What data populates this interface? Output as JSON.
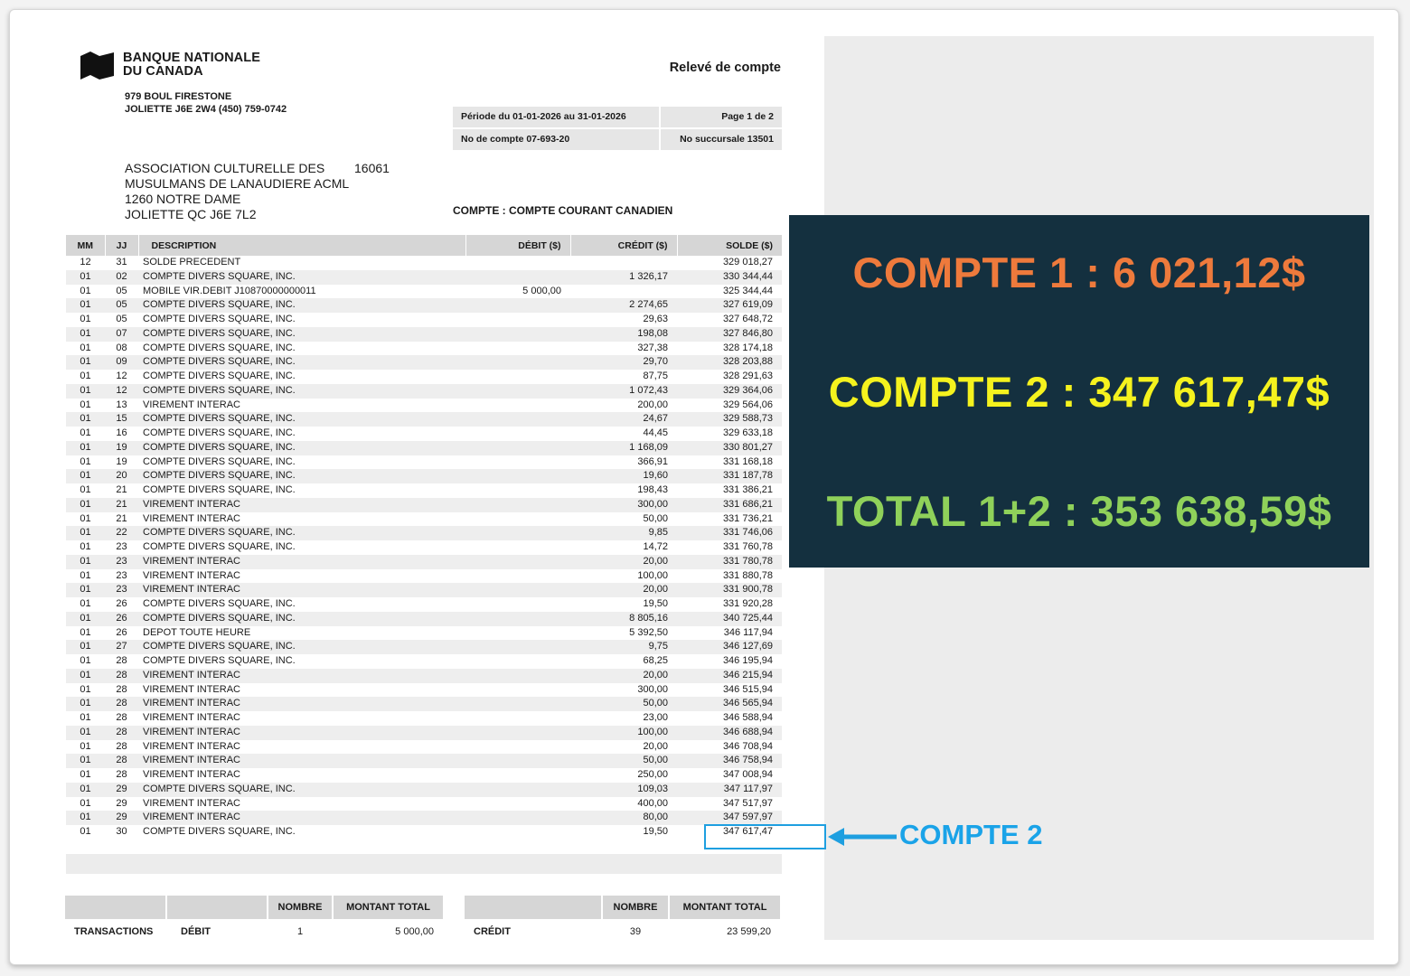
{
  "bank": {
    "name_line1": "BANQUE NATIONALE",
    "name_line2": "DU CANADA",
    "address_line1": "979 BOUL FIRESTONE",
    "address_line2": "JOLIETTE J6E 2W4 (450) 759-0742"
  },
  "document_title": "Relevé de compte",
  "period": {
    "period_text": "Période du 01-01-2026 au 31-01-2026",
    "page_text": "Page 1 de 2",
    "account_no": "No de compte 07-693-20",
    "branch_no": "No succursale 13501"
  },
  "client": {
    "line1": "ASSOCIATION CULTURELLE DES",
    "client_number": "16061",
    "line2": "MUSULMANS DE LANAUDIERE ACML",
    "line3": "1260 NOTRE DAME",
    "line4": "JOLIETTE QC  J6E 7L2"
  },
  "account_type": "COMPTE : COMPTE COURANT CANADIEN",
  "table": {
    "headers": [
      "MM",
      "JJ",
      "DESCRIPTION",
      "DÉBIT ($)",
      "CRÉDIT ($)",
      "SOLDE ($)"
    ],
    "rows": [
      [
        "12",
        "31",
        "SOLDE PRECEDENT",
        "",
        "",
        "329 018,27"
      ],
      [
        "01",
        "02",
        "COMPTE DIVERS SQUARE, INC.",
        "",
        "1 326,17",
        "330 344,44"
      ],
      [
        "01",
        "05",
        "MOBILE VIR.DEBIT J10870000000011",
        "5 000,00",
        "",
        "325 344,44"
      ],
      [
        "01",
        "05",
        "COMPTE DIVERS SQUARE, INC.",
        "",
        "2 274,65",
        "327 619,09"
      ],
      [
        "01",
        "05",
        "COMPTE DIVERS SQUARE, INC.",
        "",
        "29,63",
        "327 648,72"
      ],
      [
        "01",
        "07",
        "COMPTE DIVERS SQUARE, INC.",
        "",
        "198,08",
        "327 846,80"
      ],
      [
        "01",
        "08",
        "COMPTE DIVERS SQUARE, INC.",
        "",
        "327,38",
        "328 174,18"
      ],
      [
        "01",
        "09",
        "COMPTE DIVERS SQUARE, INC.",
        "",
        "29,70",
        "328 203,88"
      ],
      [
        "01",
        "12",
        "COMPTE DIVERS SQUARE, INC.",
        "",
        "87,75",
        "328 291,63"
      ],
      [
        "01",
        "12",
        "COMPTE DIVERS SQUARE, INC.",
        "",
        "1 072,43",
        "329 364,06"
      ],
      [
        "01",
        "13",
        "VIREMENT INTERAC",
        "",
        "200,00",
        "329 564,06"
      ],
      [
        "01",
        "15",
        "COMPTE DIVERS SQUARE, INC.",
        "",
        "24,67",
        "329 588,73"
      ],
      [
        "01",
        "16",
        "COMPTE DIVERS SQUARE, INC.",
        "",
        "44,45",
        "329 633,18"
      ],
      [
        "01",
        "19",
        "COMPTE DIVERS SQUARE, INC.",
        "",
        "1 168,09",
        "330 801,27"
      ],
      [
        "01",
        "19",
        "COMPTE DIVERS SQUARE, INC.",
        "",
        "366,91",
        "331 168,18"
      ],
      [
        "01",
        "20",
        "COMPTE DIVERS SQUARE, INC.",
        "",
        "19,60",
        "331 187,78"
      ],
      [
        "01",
        "21",
        "COMPTE DIVERS SQUARE, INC.",
        "",
        "198,43",
        "331 386,21"
      ],
      [
        "01",
        "21",
        "VIREMENT INTERAC",
        "",
        "300,00",
        "331 686,21"
      ],
      [
        "01",
        "21",
        "VIREMENT INTERAC",
        "",
        "50,00",
        "331 736,21"
      ],
      [
        "01",
        "22",
        "COMPTE DIVERS SQUARE, INC.",
        "",
        "9,85",
        "331 746,06"
      ],
      [
        "01",
        "23",
        "COMPTE DIVERS SQUARE, INC.",
        "",
        "14,72",
        "331 760,78"
      ],
      [
        "01",
        "23",
        "VIREMENT INTERAC",
        "",
        "20,00",
        "331 780,78"
      ],
      [
        "01",
        "23",
        "VIREMENT INTERAC",
        "",
        "100,00",
        "331 880,78"
      ],
      [
        "01",
        "23",
        "VIREMENT INTERAC",
        "",
        "20,00",
        "331 900,78"
      ],
      [
        "01",
        "26",
        "COMPTE DIVERS SQUARE, INC.",
        "",
        "19,50",
        "331 920,28"
      ],
      [
        "01",
        "26",
        "COMPTE DIVERS SQUARE, INC.",
        "",
        "8 805,16",
        "340 725,44"
      ],
      [
        "01",
        "26",
        "DEPOT TOUTE HEURE",
        "",
        "5 392,50",
        "346 117,94"
      ],
      [
        "01",
        "27",
        "COMPTE DIVERS SQUARE, INC.",
        "",
        "9,75",
        "346 127,69"
      ],
      [
        "01",
        "28",
        "COMPTE DIVERS SQUARE, INC.",
        "",
        "68,25",
        "346 195,94"
      ],
      [
        "01",
        "28",
        "VIREMENT INTERAC",
        "",
        "20,00",
        "346 215,94"
      ],
      [
        "01",
        "28",
        "VIREMENT INTERAC",
        "",
        "300,00",
        "346 515,94"
      ],
      [
        "01",
        "28",
        "VIREMENT INTERAC",
        "",
        "50,00",
        "346 565,94"
      ],
      [
        "01",
        "28",
        "VIREMENT INTERAC",
        "",
        "23,00",
        "346 588,94"
      ],
      [
        "01",
        "28",
        "VIREMENT INTERAC",
        "",
        "100,00",
        "346 688,94"
      ],
      [
        "01",
        "28",
        "VIREMENT INTERAC",
        "",
        "20,00",
        "346 708,94"
      ],
      [
        "01",
        "28",
        "VIREMENT INTERAC",
        "",
        "50,00",
        "346 758,94"
      ],
      [
        "01",
        "28",
        "VIREMENT INTERAC",
        "",
        "250,00",
        "347 008,94"
      ],
      [
        "01",
        "29",
        "COMPTE DIVERS SQUARE, INC.",
        "",
        "109,03",
        "347 117,97"
      ],
      [
        "01",
        "29",
        "VIREMENT INTERAC",
        "",
        "400,00",
        "347 517,97"
      ],
      [
        "01",
        "29",
        "VIREMENT INTERAC",
        "",
        "80,00",
        "347 597,97"
      ],
      [
        "01",
        "30",
        "COMPTE DIVERS SQUARE, INC.",
        "",
        "19,50",
        "347 617,47"
      ]
    ]
  },
  "totals": {
    "header_nombre": "NOMBRE",
    "header_montant": "MONTANT TOTAL",
    "transactions_label": "TRANSACTIONS",
    "debit_label": "DÉBIT",
    "debit_count": "1",
    "debit_total": "5 000,00",
    "credit_label": "CRÉDIT",
    "credit_count": "39",
    "credit_total": "23 599,20"
  },
  "annotation": {
    "label": "COMPTE 2",
    "color": "#1aa3e8"
  },
  "summary": {
    "line1": "COMPTE 1 :  6 021,12$",
    "line1_color": "#ee7a3c",
    "line2": "COMPTE 2 : 347 617,47$",
    "line2_color": "#f5f21e",
    "line3": "TOTAL 1+2 : 353 638,59$",
    "line3_color": "#8fd15a",
    "background": "#14303f"
  }
}
